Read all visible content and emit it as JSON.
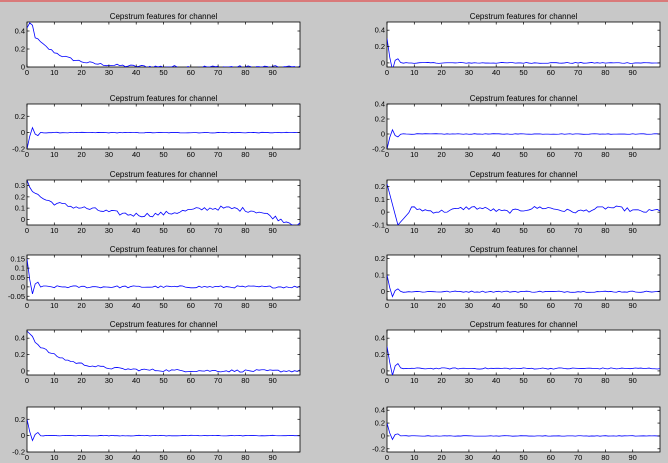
{
  "figure": {
    "background": "#c8c8c8",
    "axes_background": "#ffffff",
    "line_color": "#0000ff"
  },
  "chart_data": [
    {
      "type": "line",
      "title": "Cepstrum features for channel",
      "xlim": [
        0,
        100
      ],
      "ylim": [
        0,
        0.5
      ],
      "xticks": [
        0,
        10,
        20,
        30,
        40,
        50,
        60,
        70,
        80,
        90
      ],
      "yticks": [
        0,
        0.2,
        0.4
      ],
      "ytick_labels": [
        "0",
        "0.2",
        "0.4"
      ],
      "shape": {
        "kind": "decay",
        "start": 0.45,
        "end": 0.0,
        "tau": 10,
        "noise": 0.015
      },
      "series": [
        {
          "color": "#0000ff"
        }
      ]
    },
    {
      "type": "line",
      "title": "Cepstrum features for channel",
      "xlim": [
        0,
        100
      ],
      "ylim": [
        -0.05,
        0.5
      ],
      "xticks": [
        0,
        10,
        20,
        30,
        40,
        50,
        60,
        70,
        80,
        90
      ],
      "yticks": [
        0,
        0.2,
        0.4
      ],
      "ytick_labels": [
        "0",
        "0.2",
        "0.4"
      ],
      "shape": {
        "kind": "spike",
        "start": 0.3,
        "level": 0.0,
        "noise": 0.006
      },
      "series": [
        {
          "color": "#0000ff"
        }
      ]
    },
    {
      "type": "line",
      "title": "Cepstrum features for channel",
      "xlim": [
        0,
        100
      ],
      "ylim": [
        -0.2,
        0.35
      ],
      "xticks": [
        0,
        10,
        20,
        30,
        40,
        50,
        60,
        70,
        80,
        90
      ],
      "yticks": [
        -0.2,
        0,
        0.2
      ],
      "ytick_labels": [
        "-0.2",
        "0",
        "0.2"
      ],
      "shape": {
        "kind": "spike",
        "start": -0.2,
        "level": 0.0,
        "noise": 0.004
      },
      "series": [
        {
          "color": "#0000ff"
        }
      ]
    },
    {
      "type": "line",
      "title": "Cepstrum features for channel",
      "xlim": [
        0,
        100
      ],
      "ylim": [
        -0.2,
        0.4
      ],
      "xticks": [
        0,
        10,
        20,
        30,
        40,
        50,
        60,
        70,
        80,
        90
      ],
      "yticks": [
        -0.2,
        0,
        0.2,
        0.4
      ],
      "ytick_labels": [
        "-0.2",
        "0",
        "0.2",
        "0.4"
      ],
      "shape": {
        "kind": "spike",
        "start": -0.2,
        "level": 0.0,
        "noise": 0.004
      },
      "series": [
        {
          "color": "#0000ff"
        }
      ]
    },
    {
      "type": "line",
      "title": "Cepstrum features for channel",
      "xlim": [
        0,
        100
      ],
      "ylim": [
        -0.05,
        0.35
      ],
      "xticks": [
        0,
        10,
        20,
        30,
        40,
        50,
        60,
        70,
        80,
        90
      ],
      "yticks": [
        0,
        0.1,
        0.2,
        0.3
      ],
      "ytick_labels": [
        "0",
        "0.1",
        "0.2",
        "0.3"
      ],
      "shape": {
        "kind": "wander",
        "start": 0.33,
        "level": 0.07,
        "end": -0.03,
        "noise": 0.02
      },
      "series": [
        {
          "color": "#0000ff"
        }
      ]
    },
    {
      "type": "line",
      "title": "Cepstrum features for channel",
      "xlim": [
        0,
        100
      ],
      "ylim": [
        -0.1,
        0.25
      ],
      "xticks": [
        0,
        10,
        20,
        30,
        40,
        50,
        60,
        70,
        80,
        90
      ],
      "yticks": [
        -0.1,
        0,
        0.1,
        0.2
      ],
      "ytick_labels": [
        "-0.1",
        "0",
        "0.1",
        "0.2"
      ],
      "shape": {
        "kind": "dip",
        "start": 0.22,
        "min": -0.1,
        "level": 0.02,
        "noise": 0.015
      },
      "series": [
        {
          "color": "#0000ff"
        }
      ]
    },
    {
      "type": "line",
      "title": "Cepstrum features for channel",
      "xlim": [
        0,
        100
      ],
      "ylim": [
        -0.07,
        0.17
      ],
      "xticks": [
        0,
        10,
        20,
        30,
        40,
        50,
        60,
        70,
        80,
        90
      ],
      "yticks": [
        -0.05,
        0,
        0.05,
        0.1,
        0.15
      ],
      "ytick_labels": [
        "-0.05",
        "0",
        "0.05",
        "0.1",
        "0.15"
      ],
      "shape": {
        "kind": "spike",
        "start": 0.15,
        "level": 0.0,
        "noise": 0.006
      },
      "series": [
        {
          "color": "#0000ff"
        }
      ]
    },
    {
      "type": "line",
      "title": "Cepstrum features for channel",
      "xlim": [
        0,
        100
      ],
      "ylim": [
        -0.05,
        0.22
      ],
      "xticks": [
        0,
        10,
        20,
        30,
        40,
        50,
        60,
        70,
        80,
        90
      ],
      "yticks": [
        0,
        0.1,
        0.2
      ],
      "ytick_labels": [
        "0",
        "0.1",
        "0.2"
      ],
      "shape": {
        "kind": "spike",
        "start": 0.1,
        "level": 0.0,
        "noise": 0.004
      },
      "series": [
        {
          "color": "#0000ff"
        }
      ]
    },
    {
      "type": "line",
      "title": "Cepstrum features for channel",
      "xlim": [
        0,
        100
      ],
      "ylim": [
        -0.05,
        0.5
      ],
      "xticks": [
        0,
        10,
        20,
        30,
        40,
        50,
        60,
        70,
        80,
        90
      ],
      "yticks": [
        0,
        0.2,
        0.4
      ],
      "ytick_labels": [
        "0",
        "0.2",
        "0.4"
      ],
      "shape": {
        "kind": "decay",
        "start": 0.45,
        "end": 0.0,
        "tau": 12,
        "noise": 0.015
      },
      "series": [
        {
          "color": "#0000ff"
        }
      ]
    },
    {
      "type": "line",
      "title": "Cepstrum features for channel",
      "xlim": [
        0,
        100
      ],
      "ylim": [
        -0.05,
        0.5
      ],
      "xticks": [
        0,
        10,
        20,
        30,
        40,
        50,
        60,
        70,
        80,
        90
      ],
      "yticks": [
        0,
        0.2,
        0.4
      ],
      "ytick_labels": [
        "0",
        "0.2",
        "0.4"
      ],
      "shape": {
        "kind": "spike",
        "start": 0.3,
        "level": 0.03,
        "noise": 0.008
      },
      "series": [
        {
          "color": "#0000ff"
        }
      ]
    },
    {
      "type": "line",
      "title": "",
      "xlim": [
        0,
        100
      ],
      "ylim": [
        -0.2,
        0.35
      ],
      "xticks": [
        0,
        10,
        20,
        30,
        40,
        50,
        60,
        70,
        80,
        90
      ],
      "yticks": [
        -0.2,
        0,
        0.2
      ],
      "ytick_labels": [
        "-0.2",
        "0",
        "0.2"
      ],
      "shape": {
        "kind": "spike",
        "start": 0.2,
        "level": 0.0,
        "noise": 0.004
      },
      "series": [
        {
          "color": "#0000ff"
        }
      ]
    },
    {
      "type": "line",
      "title": "",
      "xlim": [
        0,
        100
      ],
      "ylim": [
        -0.25,
        0.45
      ],
      "xticks": [
        0,
        10,
        20,
        30,
        40,
        50,
        60,
        70,
        80,
        90
      ],
      "yticks": [
        -0.2,
        0,
        0.2,
        0.4
      ],
      "ytick_labels": [
        "-0.2",
        "0",
        "0.2",
        "0.4"
      ],
      "shape": {
        "kind": "spike",
        "start": 0.2,
        "level": 0.0,
        "noise": 0.004
      },
      "series": [
        {
          "color": "#0000ff"
        }
      ]
    }
  ]
}
